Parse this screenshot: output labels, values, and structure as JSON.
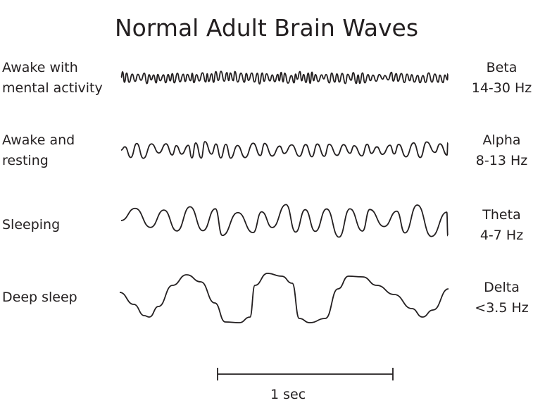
{
  "title": "Normal Adult Brain Waves",
  "rows": [
    {
      "state_line1": "Awake with",
      "state_line2": "mental activity",
      "band": "Beta",
      "freq": "14-30 Hz"
    },
    {
      "state_line1": "Awake and",
      "state_line2": "resting",
      "band": "Alpha",
      "freq": "8-13 Hz"
    },
    {
      "state_line1": "Sleeping",
      "state_line2": "",
      "band": "Theta",
      "freq": "4-7 Hz"
    },
    {
      "state_line1": "Deep sleep",
      "state_line2": "",
      "band": "Delta",
      "freq": "<3.5 Hz"
    }
  ],
  "scale_bar": {
    "label": "1 sec"
  },
  "colors": {
    "ink": "#231f20",
    "background": "#ffffff"
  }
}
